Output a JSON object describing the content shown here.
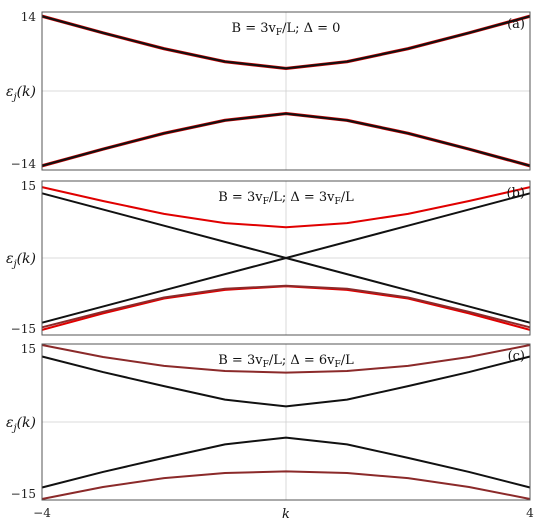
{
  "chart_data": [
    {
      "type": "line",
      "panel_tag": "(a)",
      "title": "B = 3v_F/L;  Δ = 0",
      "title_parts": [
        "B = 3v",
        "F",
        "/L;  Δ = 0"
      ],
      "ylabel": "ε_j(k)",
      "xlim": [
        -4,
        4
      ],
      "ylim": [
        -14,
        14
      ],
      "yticks": [
        "14",
        "−14"
      ],
      "xticks": [],
      "grid": true,
      "series": [
        {
          "color": "#cc0000",
          "x": [
            -4,
            -3,
            -2,
            -1,
            0,
            1,
            2,
            3,
            4
          ],
          "y": [
            13.25,
            10.3,
            7.5,
            5.2,
            4.0,
            5.2,
            7.5,
            10.3,
            13.25
          ]
        },
        {
          "color": "#cc0000",
          "x": [
            -4,
            -3,
            -2,
            -1,
            0,
            1,
            2,
            3,
            4
          ],
          "y": [
            -13.25,
            -10.3,
            -7.5,
            -5.2,
            -4.0,
            -5.2,
            -7.5,
            -10.3,
            -13.25
          ]
        },
        {
          "color": "#111111",
          "x": [
            -4,
            -3,
            -2,
            -1,
            0,
            1,
            2,
            3,
            4
          ],
          "y": [
            13.25,
            10.3,
            7.5,
            5.2,
            4.0,
            5.2,
            7.5,
            10.3,
            13.25
          ]
        },
        {
          "color": "#111111",
          "x": [
            -4,
            -3,
            -2,
            -1,
            0,
            1,
            2,
            3,
            4
          ],
          "y": [
            -13.25,
            -10.3,
            -7.5,
            -5.2,
            -4.0,
            -5.2,
            -7.5,
            -10.3,
            -13.25
          ]
        }
      ]
    },
    {
      "type": "line",
      "panel_tag": "(b)",
      "title": "B = 3v_F/L;  Δ = 3v_F/L",
      "title_parts": [
        "B = 3v",
        "F",
        "/L;  Δ = 3v",
        "F",
        "/L"
      ],
      "ylabel": "ε_j(k)",
      "xlim": [
        -4,
        4
      ],
      "ylim": [
        -15,
        15
      ],
      "yticks": [
        "15",
        "−15"
      ],
      "xticks": [],
      "grid": true,
      "series": [
        {
          "color": "#e00000",
          "x": [
            -4,
            -3,
            -2,
            -1,
            0,
            1,
            2,
            3,
            4
          ],
          "y": [
            13.8,
            11.1,
            8.6,
            6.8,
            6.0,
            6.8,
            8.6,
            11.1,
            13.8
          ]
        },
        {
          "color": "#e00000",
          "x": [
            -4,
            -3,
            -2,
            -1,
            0,
            1,
            2,
            3,
            4
          ],
          "y": [
            -14.0,
            -10.8,
            -7.9,
            -6.2,
            -5.5,
            -6.2,
            -7.9,
            -10.8,
            -14.0
          ]
        },
        {
          "color": "#111111",
          "x": [
            -4,
            -2,
            0,
            2,
            4
          ],
          "y": [
            12.6,
            6.3,
            0,
            -6.3,
            -12.6
          ]
        },
        {
          "color": "#111111",
          "x": [
            -4,
            -2,
            0,
            2,
            4
          ],
          "y": [
            -12.6,
            -6.3,
            0,
            6.3,
            12.6
          ]
        },
        {
          "color": "#8b2a2a",
          "x": [
            -4,
            -3,
            -2,
            -1,
            0,
            1,
            2,
            3,
            4
          ],
          "y": [
            -13.5,
            -10.5,
            -7.7,
            -6.0,
            -5.4,
            -6.0,
            -7.7,
            -10.5,
            -13.5
          ]
        }
      ]
    },
    {
      "type": "line",
      "panel_tag": "(c)",
      "title": "B = 3v_F/L;  Δ = 6v_F/L",
      "title_parts": [
        "B = 3v",
        "F",
        "/L;  Δ = 6v",
        "F",
        "/L"
      ],
      "ylabel": "ε_j(k)",
      "xlim": [
        -4,
        4
      ],
      "ylim": [
        -15,
        15
      ],
      "yticks": [
        "15",
        "−15"
      ],
      "xticks": [
        "−4",
        "4"
      ],
      "xlabel": "k",
      "grid": true,
      "series": [
        {
          "color": "#8b2a2a",
          "x": [
            -4,
            -3,
            -2,
            -1,
            0,
            1,
            2,
            3,
            4
          ],
          "y": [
            14.8,
            12.5,
            10.8,
            9.8,
            9.5,
            9.8,
            10.8,
            12.5,
            14.8
          ]
        },
        {
          "color": "#8b2a2a",
          "x": [
            -4,
            -3,
            -2,
            -1,
            0,
            1,
            2,
            3,
            4
          ],
          "y": [
            -14.8,
            -12.5,
            -10.8,
            -9.8,
            -9.5,
            -9.8,
            -10.8,
            -12.5,
            -14.8
          ]
        },
        {
          "color": "#111111",
          "x": [
            -4,
            -3,
            -2,
            -1,
            0,
            1,
            2,
            3,
            4
          ],
          "y": [
            12.6,
            9.6,
            6.9,
            4.3,
            3.0,
            4.3,
            6.9,
            9.6,
            12.6
          ]
        },
        {
          "color": "#111111",
          "x": [
            -4,
            -3,
            -2,
            -1,
            0,
            1,
            2,
            3,
            4
          ],
          "y": [
            -12.6,
            -9.6,
            -6.9,
            -4.3,
            -3.0,
            -4.3,
            -6.9,
            -9.6,
            -12.6
          ]
        }
      ]
    }
  ]
}
